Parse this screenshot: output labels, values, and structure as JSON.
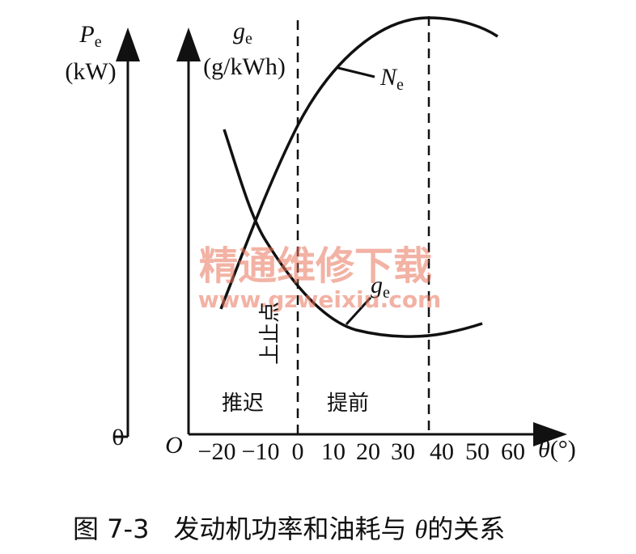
{
  "power_axis": {
    "symbol": "P",
    "subscript": "e",
    "unit": "(kW)",
    "zero": "0"
  },
  "fuel_axis": {
    "symbol": "g",
    "subscript": "e",
    "unit": "(g/kWh)"
  },
  "origin": "O",
  "x_axis": {
    "ticks": [
      "−20",
      "−10",
      "0",
      "10",
      "20",
      "30",
      "40",
      "50",
      "60"
    ],
    "symbol": "θ",
    "unit": "(°)"
  },
  "curves": {
    "power": {
      "symbol": "N",
      "subscript": "e"
    },
    "fuel": {
      "symbol": "g",
      "subscript": "e"
    }
  },
  "annotations": {
    "tdc": "上止点",
    "retard": "推迟",
    "advance": "提前"
  },
  "watermark": {
    "name": "精通维修下载",
    "url": "www.gzweixiu.com"
  },
  "caption": {
    "number": "图 7-3",
    "text": "发动机功率和油耗与",
    "symbol": "θ",
    "suffix": "的关系"
  }
}
